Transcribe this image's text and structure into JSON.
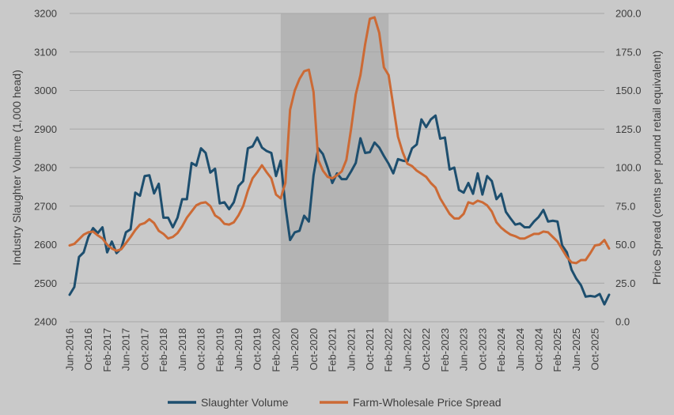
{
  "chart_data": {
    "type": "line",
    "title": "",
    "ylabel_left": "Industry Slaughter Volume (1,000 head)",
    "ylabel_right": "Price Spread (cents per pound retail equivalent)",
    "xlabel": "",
    "ylim_left": [
      2400,
      3200
    ],
    "yticks_left": [
      "2400",
      "2500",
      "2600",
      "2700",
      "2800",
      "2900",
      "3000",
      "3100",
      "3200"
    ],
    "ylim_right": [
      0,
      200
    ],
    "yticks_right": [
      "0.0",
      "25.0",
      "50.0",
      "75.0",
      "100.0",
      "125.0",
      "150.0",
      "175.0",
      "200.0"
    ],
    "x_tick_labels": [
      "Jun-2016",
      "Oct-2016",
      "Feb-2017",
      "Jun-2017",
      "Oct-2017",
      "Feb-2018",
      "Jun-2018",
      "Oct-2018",
      "Feb-2019",
      "Jun-2019",
      "Oct-2019",
      "Feb-2020",
      "Jun-2020",
      "Oct-2020",
      "Feb-2021",
      "Jun-2021",
      "Oct-2021",
      "Feb-2022",
      "Jun-2022",
      "Oct-2022",
      "Feb-2023",
      "Jun-2023",
      "Oct-2023",
      "Feb-2024",
      "Jun-2024",
      "Oct-2024",
      "Feb-2025",
      "Jun-2025",
      "Oct-2025"
    ],
    "x_start": "Jun-2016",
    "x_end": "Dec-2025",
    "grid": "horizontal",
    "shaded_period": [
      "Mar-2020",
      "Feb-2022"
    ],
    "shade_color": "#b4b4b4",
    "legend_position": "bottom",
    "series": [
      {
        "name": "Slaughter Volume",
        "axis": "left",
        "color": "#1d4e6e",
        "values": [
          2470,
          2490,
          2568,
          2580,
          2620,
          2643,
          2630,
          2645,
          2580,
          2608,
          2578,
          2590,
          2632,
          2640,
          2735,
          2727,
          2778,
          2780,
          2733,
          2758,
          2670,
          2670,
          2645,
          2670,
          2718,
          2718,
          2812,
          2805,
          2850,
          2838,
          2787,
          2797,
          2707,
          2710,
          2692,
          2710,
          2752,
          2765,
          2850,
          2855,
          2878,
          2852,
          2843,
          2838,
          2778,
          2818,
          2700,
          2612,
          2632,
          2636,
          2675,
          2660,
          2780,
          2850,
          2835,
          2800,
          2760,
          2785,
          2770,
          2770,
          2790,
          2812,
          2876,
          2838,
          2840,
          2865,
          2852,
          2830,
          2810,
          2785,
          2822,
          2818,
          2816,
          2850,
          2860,
          2925,
          2905,
          2925,
          2935,
          2875,
          2878,
          2795,
          2800,
          2742,
          2735,
          2760,
          2732,
          2785,
          2730,
          2778,
          2765,
          2718,
          2732,
          2685,
          2668,
          2652,
          2655,
          2645,
          2645,
          2660,
          2672,
          2690,
          2660,
          2662,
          2660,
          2598,
          2580,
          2535,
          2512,
          2495,
          2465,
          2467,
          2465,
          2472,
          2445,
          2470
        ]
      },
      {
        "name": "Farm-Wholesale Price Spread",
        "axis": "right",
        "color": "#cc6a35",
        "values": [
          49.5,
          50.5,
          53.5,
          56.5,
          58.0,
          58.5,
          56.0,
          54.0,
          50.0,
          47.5,
          46.0,
          47.0,
          51.0,
          55.0,
          59.5,
          63.0,
          64.0,
          66.5,
          64.0,
          59.0,
          57.0,
          54.0,
          55.0,
          57.5,
          62.0,
          67.5,
          71.5,
          75.5,
          77.0,
          77.5,
          75.0,
          69.0,
          67.0,
          63.5,
          63.0,
          64.5,
          69.0,
          75.0,
          85.0,
          93.0,
          97.0,
          101.5,
          97.0,
          93.0,
          82.5,
          80.0,
          90.0,
          137.5,
          150.0,
          157.5,
          162.5,
          163.5,
          149.0,
          105.0,
          98.0,
          94.0,
          93.0,
          95.0,
          97.5,
          105.0,
          125.0,
          147.5,
          160.0,
          180.0,
          196.5,
          197.5,
          187.5,
          165.0,
          160.0,
          140.0,
          120.0,
          110.0,
          102.5,
          101.0,
          98.0,
          96.0,
          94.0,
          90.0,
          87.0,
          80.0,
          75.0,
          70.0,
          67.0,
          67.0,
          70.0,
          77.5,
          76.5,
          78.5,
          77.5,
          75.5,
          71.5,
          64.5,
          61.0,
          58.5,
          56.5,
          55.5,
          54.0,
          54.0,
          55.5,
          57.0,
          57.0,
          58.5,
          58.0,
          55.0,
          52.0,
          47.0,
          42.0,
          38.5,
          38.0,
          40.0,
          40.0,
          44.5,
          49.5,
          50.0,
          53.0,
          47.5
        ]
      }
    ]
  }
}
